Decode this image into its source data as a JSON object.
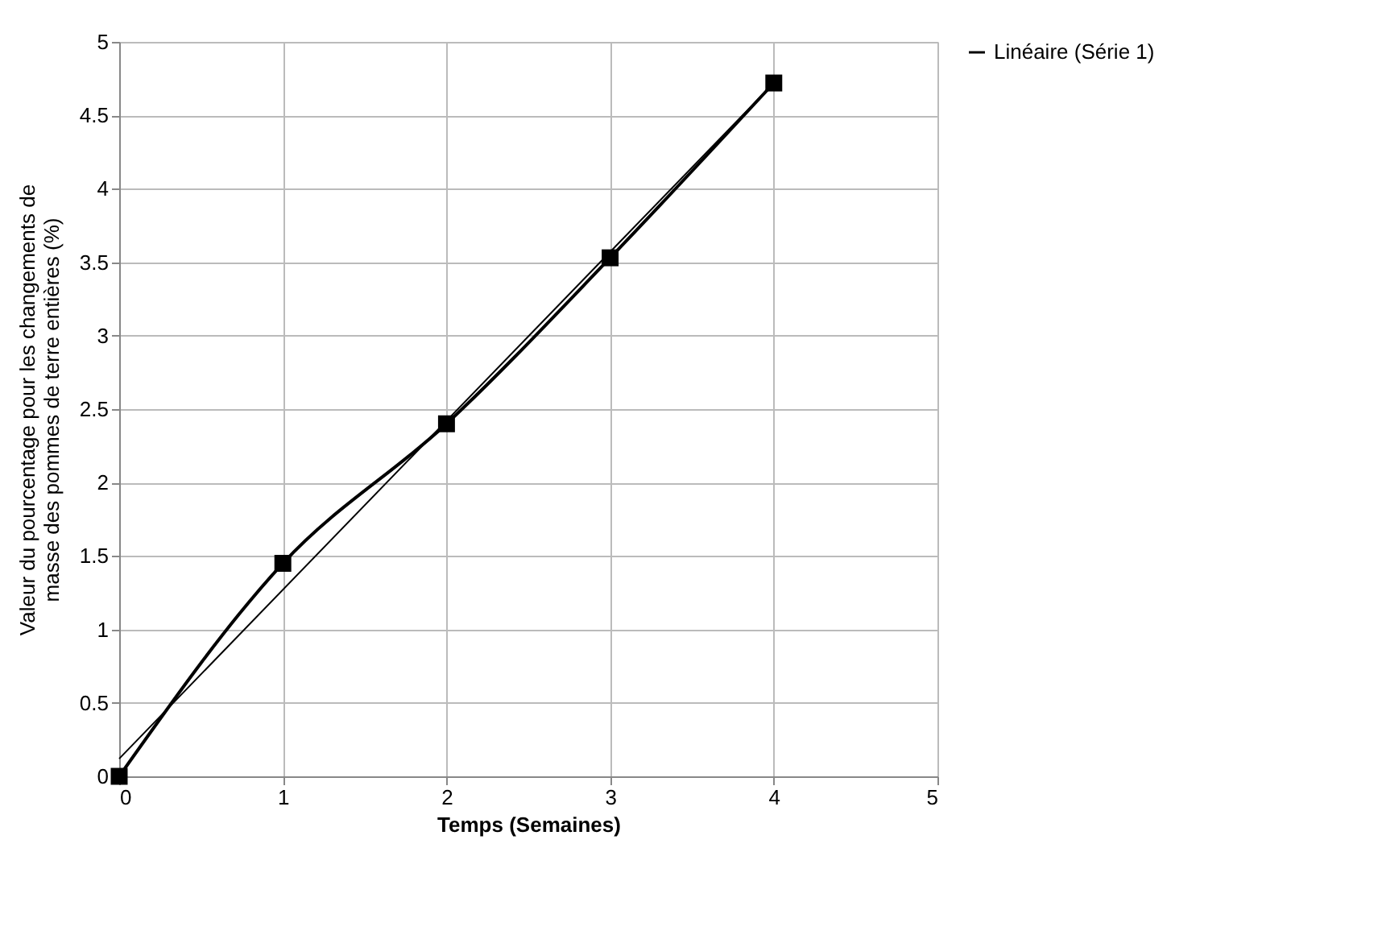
{
  "chart_data": {
    "type": "line",
    "xlabel": "Temps (Semaines)",
    "ylabel": "Valeur du pourcentage pour les changements de masse des pommes de terre entières (%)",
    "x": [
      0,
      1,
      2,
      3,
      4
    ],
    "series": [
      {
        "color": "#000000",
        "values": [
          0,
          1.45,
          2.4,
          3.53,
          4.72
        ],
        "marker": "square"
      },
      {
        "name": "Linéaire (Série 1)",
        "color": "#000000",
        "x": [
          0,
          4
        ],
        "values": [
          0.12,
          4.72
        ],
        "marker": "none"
      }
    ],
    "xlim": [
      0,
      5
    ],
    "xticks": [
      0,
      1,
      2,
      3,
      4,
      5
    ],
    "ylim": [
      0,
      5
    ],
    "yticks": [
      0,
      0.5,
      1,
      1.5,
      2,
      2.5,
      3,
      3.5,
      4,
      4.5,
      5
    ],
    "grid": true,
    "legend": "right",
    "line_style": "solid"
  }
}
